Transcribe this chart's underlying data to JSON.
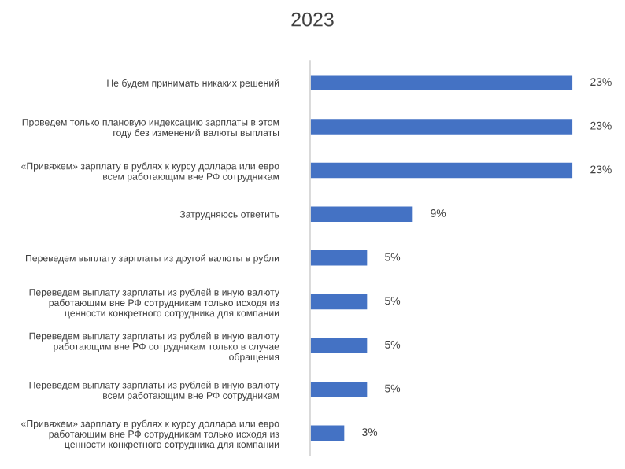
{
  "chart_data": {
    "type": "bar",
    "orientation": "horizontal",
    "title": "2023",
    "categories": [
      "Не будем принимать никаких решений",
      "Проведем только плановую индексацию зарплаты в этом\nгоду без изменений валюты выплаты",
      "«Привяжем» зарплату в рублях к курсу доллара или евро\nвсем работающим вне РФ сотрудникам",
      "Затрудняюсь ответить",
      "Переведем выплату зарплаты из другой валюты в рубли",
      "Переведем выплату зарплаты из рублей в иную валюту\nработающим вне РФ сотрудникам только исходя из\nценности конкретного сотрудника для компании",
      "Переведем выплату зарплаты из рублей в иную валюту\nработающим вне РФ сотрудникам только в случае\nобращения",
      "Переведем выплату зарплаты из рублей в иную валюту\nвсем работающим вне РФ сотрудникам",
      "«Привяжем» зарплату в рублях к курсу доллара или евро\nработающим вне РФ сотрудникам только исходя из\nценности конкретного сотрудника для компании"
    ],
    "values": [
      23,
      23,
      23,
      9,
      5,
      5,
      5,
      5,
      3
    ],
    "value_labels": [
      "23%",
      "23%",
      "23%",
      "9%",
      "5%",
      "5%",
      "5%",
      "5%",
      "3%"
    ],
    "color": "#4472c4",
    "grid": false,
    "legend": false
  }
}
